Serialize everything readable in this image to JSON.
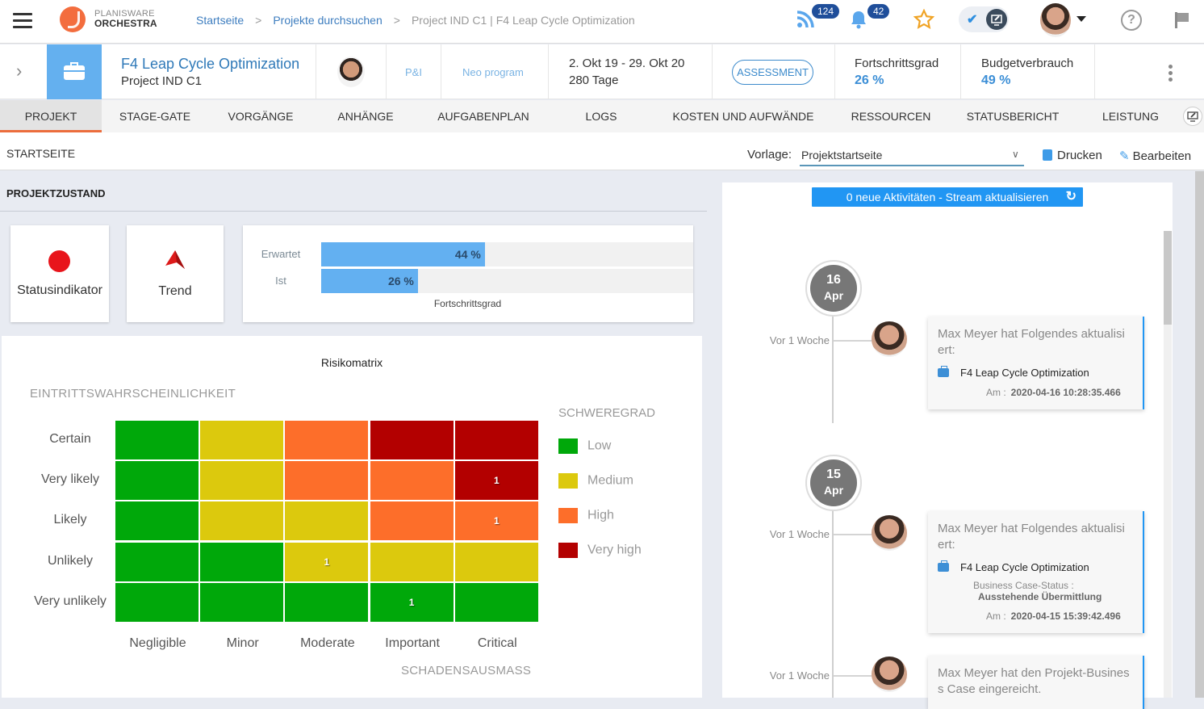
{
  "topbar": {
    "logo_top": "PLANISWARE",
    "logo_bottom": "ORCHESTRA",
    "breadcrumbs": [
      "Startseite",
      "Projekte durchsuchen"
    ],
    "breadcrumb_current": "Project IND C1 | F4 Leap Cycle Optimization",
    "breadcrumb_sep": ">",
    "feed_count": "124",
    "notification_count": "42"
  },
  "project": {
    "title": "F4 Leap Cycle Optimization",
    "subtitle": "Project IND C1",
    "tag1": "P&I",
    "tag2": "Neo program",
    "dates": "2. Okt 19 - 29. Okt 20",
    "duration": "280 Tage",
    "phase": "ASSESSMENT",
    "progress_label": "Fortschrittsgrad",
    "progress_value": "26 %",
    "budget_label": "Budgetverbrauch",
    "budget_value": "49 %"
  },
  "tabs": [
    "PROJEKT",
    "STAGE-GATE",
    "VORGÄNGE",
    "ANHÄNGE",
    "AUFGABENPLAN",
    "LOGS",
    "KOSTEN UND AUFWÄNDE",
    "RESSOURCEN",
    "STATUSBERICHT",
    "LEISTUNG"
  ],
  "subheader": {
    "title": "STARTSEITE",
    "template_label": "Vorlage:",
    "template_value": "Projektstartseite",
    "print_label": "Drucken",
    "edit_label": "Bearbeiten"
  },
  "health": {
    "section_title": "PROJEKTZUSTAND",
    "status_label": "Statusindikator",
    "status_color": "#e8141b",
    "trend_label": "Trend",
    "progress_chart": {
      "title": "Fortschrittsgrad",
      "rows": [
        {
          "label": "Erwartet",
          "value": 44,
          "text": "44 %"
        },
        {
          "label": "Ist",
          "value": 26,
          "text": "26 %"
        }
      ]
    }
  },
  "chart_data": {
    "type": "heatmap",
    "title": "Risikomatrix",
    "ylabel": "EINTRITTSWAHRSCHEINLICHKEIT",
    "xlabel": "SCHADENSAUSMASS",
    "rows": [
      "Certain",
      "Very likely",
      "Likely",
      "Unlikely",
      "Very unlikely"
    ],
    "columns": [
      "Negligible",
      "Minor",
      "Moderate",
      "Important",
      "Critical"
    ],
    "severity": [
      [
        "Low",
        "Medium",
        "High",
        "Very high",
        "Very high"
      ],
      [
        "Low",
        "Medium",
        "High",
        "High",
        "Very high"
      ],
      [
        "Low",
        "Medium",
        "Medium",
        "High",
        "High"
      ],
      [
        "Low",
        "Low",
        "Medium",
        "Medium",
        "Medium"
      ],
      [
        "Low",
        "Low",
        "Low",
        "Low",
        "Low"
      ]
    ],
    "counts": [
      [
        null,
        null,
        null,
        null,
        null
      ],
      [
        null,
        null,
        null,
        null,
        1
      ],
      [
        null,
        null,
        null,
        null,
        1
      ],
      [
        null,
        null,
        1,
        null,
        null
      ],
      [
        null,
        null,
        null,
        1,
        null
      ]
    ],
    "legend_title": "SCHWEREGRAD",
    "legend": [
      {
        "label": "Low",
        "color": "#00a80a"
      },
      {
        "label": "Medium",
        "color": "#dcc90d"
      },
      {
        "label": "High",
        "color": "#fd6e2a"
      },
      {
        "label": "Very high",
        "color": "#b30000"
      }
    ]
  },
  "activity": {
    "refresh_label": "0 neue Aktivitäten - Stream aktualisieren",
    "groups": [
      {
        "day": "16",
        "month": "Apr",
        "items": [
          {
            "ago": "Vor 1 Woche",
            "text": "Max Meyer hat Folgendes aktualisiert:",
            "object": "F4 Leap Cycle Optimization",
            "field": null,
            "field_value": null,
            "am_label": "Am :",
            "timestamp": "2020-04-16 10:28:35.466"
          }
        ]
      },
      {
        "day": "15",
        "month": "Apr",
        "items": [
          {
            "ago": "Vor 1 Woche",
            "text": "Max Meyer hat Folgendes aktualisiert:",
            "object": "F4 Leap Cycle Optimization",
            "field": "Business Case-Status :",
            "field_value": "Ausstehende Übermittlung",
            "am_label": "Am :",
            "timestamp": "2020-04-15 15:39:42.496"
          },
          {
            "ago": "Vor 1 Woche",
            "text": "Max Meyer hat den Projekt-Business Case eingereicht.",
            "object": null,
            "field": null,
            "field_value": null,
            "am_label": null,
            "timestamp": null
          }
        ]
      }
    ]
  }
}
